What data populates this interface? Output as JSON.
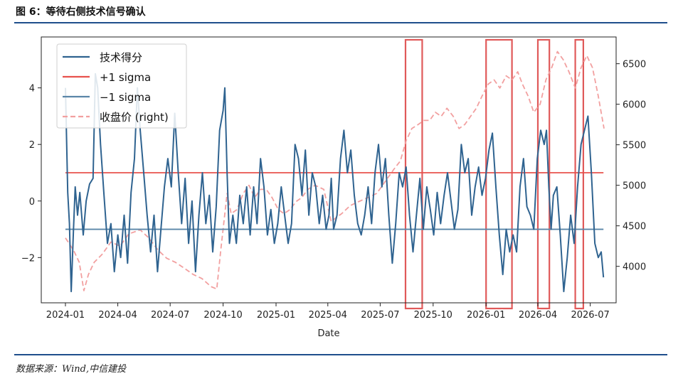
{
  "header": {
    "title": "图 6：等待右侧技术信号确认"
  },
  "footer": {
    "source": "数据来源：Wind,中信建投"
  },
  "chart_data": {
    "type": "line",
    "xlabel": "Date",
    "x_ticks": [
      "2024-01",
      "2024-04",
      "2024-07",
      "2024-10",
      "2025-01",
      "2025-04",
      "2025-07",
      "2025-10",
      "2026-01",
      "2026-04",
      "2026-07"
    ],
    "y_left_ticks": [
      -2,
      0,
      2,
      4
    ],
    "y_left_lim": [
      -3.6,
      5.8
    ],
    "y_right_ticks": [
      4000,
      4500,
      5000,
      5500,
      6000,
      6500
    ],
    "y_right_lim": [
      3550,
      6830
    ],
    "x_lim": [
      "2023-11-20",
      "2026-08-15"
    ],
    "grid": false,
    "legend_position": "top-left",
    "colors": {
      "score": "#2f6390",
      "plus": "#e8524d",
      "minus": "#5a86a8",
      "price": "#f2a0a0",
      "box": "#e05a5a"
    },
    "series": [
      {
        "name": "技术得分",
        "axis": "left",
        "style": "solid",
        "points": [
          [
            "2024-01-01",
            4.0
          ],
          [
            "2024-01-05",
            0.3
          ],
          [
            "2024-01-08",
            -0.8
          ],
          [
            "2024-01-11",
            -3.2
          ],
          [
            "2024-01-15",
            -1.0
          ],
          [
            "2024-01-18",
            0.5
          ],
          [
            "2024-01-22",
            -0.5
          ],
          [
            "2024-01-26",
            0.3
          ],
          [
            "2024-02-01",
            -1.2
          ],
          [
            "2024-02-06",
            0.0
          ],
          [
            "2024-02-12",
            0.6
          ],
          [
            "2024-02-18",
            0.8
          ],
          [
            "2024-02-22",
            4.5
          ],
          [
            "2024-02-26",
            4.0
          ],
          [
            "2024-03-02",
            2.0
          ],
          [
            "2024-03-08",
            0.2
          ],
          [
            "2024-03-14",
            -1.5
          ],
          [
            "2024-03-20",
            -0.8
          ],
          [
            "2024-03-26",
            -2.5
          ],
          [
            "2024-04-01",
            -1.2
          ],
          [
            "2024-04-06",
            -2.0
          ],
          [
            "2024-04-12",
            -0.5
          ],
          [
            "2024-04-18",
            -2.2
          ],
          [
            "2024-04-24",
            0.3
          ],
          [
            "2024-04-30",
            1.5
          ],
          [
            "2024-05-05",
            4.0
          ],
          [
            "2024-05-10",
            2.5
          ],
          [
            "2024-05-16",
            1.0
          ],
          [
            "2024-05-22",
            -0.5
          ],
          [
            "2024-05-28",
            -1.8
          ],
          [
            "2024-06-03",
            -0.5
          ],
          [
            "2024-06-09",
            -2.5
          ],
          [
            "2024-06-15",
            -1.0
          ],
          [
            "2024-06-21",
            0.5
          ],
          [
            "2024-06-27",
            1.5
          ],
          [
            "2024-07-03",
            0.5
          ],
          [
            "2024-07-09",
            3.1
          ],
          [
            "2024-07-15",
            1.0
          ],
          [
            "2024-07-21",
            -0.8
          ],
          [
            "2024-07-27",
            0.8
          ],
          [
            "2024-08-02",
            -1.5
          ],
          [
            "2024-08-08",
            0.0
          ],
          [
            "2024-08-14",
            -2.5
          ],
          [
            "2024-08-20",
            -0.5
          ],
          [
            "2024-08-26",
            1.0
          ],
          [
            "2024-09-01",
            -0.8
          ],
          [
            "2024-09-07",
            0.2
          ],
          [
            "2024-09-13",
            -1.8
          ],
          [
            "2024-09-19",
            -0.2
          ],
          [
            "2024-09-25",
            2.5
          ],
          [
            "2024-10-01",
            3.2
          ],
          [
            "2024-10-04",
            4.0
          ],
          [
            "2024-10-08",
            1.0
          ],
          [
            "2024-10-12",
            -1.5
          ],
          [
            "2024-10-18",
            -0.5
          ],
          [
            "2024-10-24",
            -1.5
          ],
          [
            "2024-10-30",
            0.2
          ],
          [
            "2024-11-05",
            -0.8
          ],
          [
            "2024-11-11",
            0.5
          ],
          [
            "2024-11-17",
            -1.2
          ],
          [
            "2024-11-23",
            0.5
          ],
          [
            "2024-11-29",
            -0.8
          ],
          [
            "2024-12-05",
            1.5
          ],
          [
            "2024-12-11",
            0.5
          ],
          [
            "2024-12-17",
            -1.2
          ],
          [
            "2024-12-23",
            -0.3
          ],
          [
            "2024-12-29",
            -1.5
          ],
          [
            "2025-01-04",
            -0.8
          ],
          [
            "2025-01-10",
            0.5
          ],
          [
            "2025-01-16",
            -0.5
          ],
          [
            "2025-01-22",
            -1.5
          ],
          [
            "2025-01-28",
            -0.8
          ],
          [
            "2025-02-03",
            2.0
          ],
          [
            "2025-02-09",
            1.5
          ],
          [
            "2025-02-15",
            0.2
          ],
          [
            "2025-02-21",
            1.8
          ],
          [
            "2025-02-27",
            -0.5
          ],
          [
            "2025-03-05",
            1.0
          ],
          [
            "2025-03-11",
            0.5
          ],
          [
            "2025-03-17",
            -0.8
          ],
          [
            "2025-03-23",
            0.2
          ],
          [
            "2025-03-29",
            -1.0
          ],
          [
            "2025-04-03",
            -0.5
          ],
          [
            "2025-04-07",
            0.8
          ],
          [
            "2025-04-11",
            -1.0
          ],
          [
            "2025-04-17",
            -0.5
          ],
          [
            "2025-04-23",
            1.5
          ],
          [
            "2025-04-29",
            2.5
          ],
          [
            "2025-05-05",
            1.0
          ],
          [
            "2025-05-11",
            1.8
          ],
          [
            "2025-05-17",
            0.2
          ],
          [
            "2025-05-23",
            -0.8
          ],
          [
            "2025-05-29",
            -1.2
          ],
          [
            "2025-06-04",
            -0.5
          ],
          [
            "2025-06-10",
            0.5
          ],
          [
            "2025-06-16",
            -0.8
          ],
          [
            "2025-06-22",
            1.0
          ],
          [
            "2025-06-28",
            2.0
          ],
          [
            "2025-07-04",
            0.5
          ],
          [
            "2025-07-10",
            1.5
          ],
          [
            "2025-07-16",
            -0.5
          ],
          [
            "2025-07-22",
            -2.2
          ],
          [
            "2025-07-28",
            -0.8
          ],
          [
            "2025-08-03",
            1.0
          ],
          [
            "2025-08-09",
            0.5
          ],
          [
            "2025-08-15",
            1.2
          ],
          [
            "2025-08-21",
            -0.5
          ],
          [
            "2025-08-27",
            -1.8
          ],
          [
            "2025-09-02",
            -0.5
          ],
          [
            "2025-09-08",
            0.8
          ],
          [
            "2025-09-14",
            -1.0
          ],
          [
            "2025-09-20",
            0.5
          ],
          [
            "2025-09-26",
            -0.3
          ],
          [
            "2025-10-02",
            -1.2
          ],
          [
            "2025-10-08",
            0.3
          ],
          [
            "2025-10-14",
            -0.8
          ],
          [
            "2025-10-20",
            0.2
          ],
          [
            "2025-10-26",
            1.0
          ],
          [
            "2025-11-01",
            0.0
          ],
          [
            "2025-11-07",
            -1.0
          ],
          [
            "2025-11-13",
            -0.3
          ],
          [
            "2025-11-19",
            2.0
          ],
          [
            "2025-11-25",
            1.0
          ],
          [
            "2025-12-01",
            1.5
          ],
          [
            "2025-12-07",
            -0.5
          ],
          [
            "2025-12-13",
            0.5
          ],
          [
            "2025-12-19",
            1.2
          ],
          [
            "2025-12-25",
            0.2
          ],
          [
            "2025-12-31",
            0.8
          ],
          [
            "2026-01-06",
            1.8
          ],
          [
            "2026-01-12",
            2.4
          ],
          [
            "2026-01-18",
            0.5
          ],
          [
            "2026-01-24",
            -1.2
          ],
          [
            "2026-01-30",
            -2.6
          ],
          [
            "2026-02-05",
            -1.0
          ],
          [
            "2026-02-11",
            -1.8
          ],
          [
            "2026-02-17",
            -1.2
          ],
          [
            "2026-02-23",
            -1.8
          ],
          [
            "2026-03-01",
            0.5
          ],
          [
            "2026-03-07",
            1.5
          ],
          [
            "2026-03-13",
            -0.2
          ],
          [
            "2026-03-19",
            -0.5
          ],
          [
            "2026-03-25",
            -1.0
          ],
          [
            "2026-03-31",
            1.5
          ],
          [
            "2026-04-06",
            2.5
          ],
          [
            "2026-04-12",
            2.0
          ],
          [
            "2026-04-16",
            2.5
          ],
          [
            "2026-04-20",
            0.5
          ],
          [
            "2026-04-24",
            -1.0
          ],
          [
            "2026-04-28",
            0.2
          ],
          [
            "2026-05-04",
            0.5
          ],
          [
            "2026-05-10",
            -1.2
          ],
          [
            "2026-05-16",
            -3.2
          ],
          [
            "2026-05-22",
            -2.0
          ],
          [
            "2026-05-28",
            -0.5
          ],
          [
            "2026-06-03",
            -1.5
          ],
          [
            "2026-06-09",
            0.5
          ],
          [
            "2026-06-15",
            2.0
          ],
          [
            "2026-06-21",
            2.5
          ],
          [
            "2026-06-27",
            3.0
          ],
          [
            "2026-07-03",
            1.0
          ],
          [
            "2026-07-09",
            -1.5
          ],
          [
            "2026-07-15",
            -2.0
          ],
          [
            "2026-07-20",
            -1.8
          ],
          [
            "2026-07-24",
            -2.7
          ]
        ]
      },
      {
        "name": "+1 sigma",
        "axis": "left",
        "style": "solid",
        "constant": 1.0
      },
      {
        "name": "-1 sigma",
        "legend_label": "−1 sigma",
        "axis": "left",
        "style": "solid",
        "constant": -1.0
      },
      {
        "name": "收盘价 (right)",
        "axis": "right",
        "style": "dashed",
        "points": [
          [
            "2024-01-01",
            4350
          ],
          [
            "2024-01-15",
            4200
          ],
          [
            "2024-01-25",
            4050
          ],
          [
            "2024-02-02",
            3700
          ],
          [
            "2024-02-10",
            3900
          ],
          [
            "2024-02-20",
            4050
          ],
          [
            "2024-03-05",
            4150
          ],
          [
            "2024-03-20",
            4300
          ],
          [
            "2024-04-05",
            4250
          ],
          [
            "2024-04-20",
            4400
          ],
          [
            "2024-05-10",
            4450
          ],
          [
            "2024-05-25",
            4350
          ],
          [
            "2024-06-10",
            4200
          ],
          [
            "2024-06-25",
            4100
          ],
          [
            "2024-07-10",
            4050
          ],
          [
            "2024-07-25",
            3980
          ],
          [
            "2024-08-10",
            3900
          ],
          [
            "2024-08-25",
            3850
          ],
          [
            "2024-09-10",
            3750
          ],
          [
            "2024-09-20",
            3720
          ],
          [
            "2024-09-27",
            4200
          ],
          [
            "2024-10-08",
            4900
          ],
          [
            "2024-10-15",
            4650
          ],
          [
            "2024-10-25",
            4700
          ],
          [
            "2024-11-05",
            4900
          ],
          [
            "2024-11-15",
            5000
          ],
          [
            "2024-11-25",
            4850
          ],
          [
            "2024-12-05",
            4950
          ],
          [
            "2024-12-15",
            4950
          ],
          [
            "2024-12-25",
            4850
          ],
          [
            "2025-01-05",
            4700
          ],
          [
            "2025-01-15",
            4650
          ],
          [
            "2025-01-25",
            4700
          ],
          [
            "2025-02-05",
            4800
          ],
          [
            "2025-02-15",
            4850
          ],
          [
            "2025-02-25",
            4950
          ],
          [
            "2025-03-10",
            5000
          ],
          [
            "2025-03-25",
            4950
          ],
          [
            "2025-04-07",
            4550
          ],
          [
            "2025-04-15",
            4600
          ],
          [
            "2025-04-25",
            4650
          ],
          [
            "2025-05-10",
            4750
          ],
          [
            "2025-05-25",
            4800
          ],
          [
            "2025-06-10",
            4850
          ],
          [
            "2025-06-25",
            4900
          ],
          [
            "2025-07-10",
            5050
          ],
          [
            "2025-07-25",
            5200
          ],
          [
            "2025-08-05",
            5300
          ],
          [
            "2025-08-15",
            5550
          ],
          [
            "2025-08-25",
            5700
          ],
          [
            "2025-09-05",
            5750
          ],
          [
            "2025-09-15",
            5800
          ],
          [
            "2025-09-25",
            5800
          ],
          [
            "2025-10-05",
            5900
          ],
          [
            "2025-10-15",
            5850
          ],
          [
            "2025-10-25",
            5950
          ],
          [
            "2025-11-05",
            5850
          ],
          [
            "2025-11-15",
            5700
          ],
          [
            "2025-11-25",
            5750
          ],
          [
            "2025-12-05",
            5850
          ],
          [
            "2025-12-15",
            5950
          ],
          [
            "2025-12-25",
            6100
          ],
          [
            "2026-01-05",
            6250
          ],
          [
            "2026-01-15",
            6300
          ],
          [
            "2026-01-25",
            6200
          ],
          [
            "2026-02-05",
            6350
          ],
          [
            "2026-02-15",
            6300
          ],
          [
            "2026-02-25",
            6400
          ],
          [
            "2026-03-05",
            6250
          ],
          [
            "2026-03-15",
            6100
          ],
          [
            "2026-03-25",
            5900
          ],
          [
            "2026-04-05",
            6000
          ],
          [
            "2026-04-15",
            6300
          ],
          [
            "2026-04-25",
            6450
          ],
          [
            "2026-05-05",
            6650
          ],
          [
            "2026-05-15",
            6550
          ],
          [
            "2026-05-25",
            6400
          ],
          [
            "2026-06-05",
            6200
          ],
          [
            "2026-06-15",
            6450
          ],
          [
            "2026-06-25",
            6600
          ],
          [
            "2026-07-05",
            6450
          ],
          [
            "2026-07-15",
            6100
          ],
          [
            "2026-07-25",
            5700
          ]
        ]
      }
    ],
    "highlight_ranges": [
      [
        "2025-08-14",
        "2025-09-12"
      ],
      [
        "2026-01-01",
        "2026-02-15"
      ],
      [
        "2026-04-01",
        "2026-04-21"
      ],
      [
        "2026-06-05",
        "2026-06-19"
      ]
    ]
  }
}
